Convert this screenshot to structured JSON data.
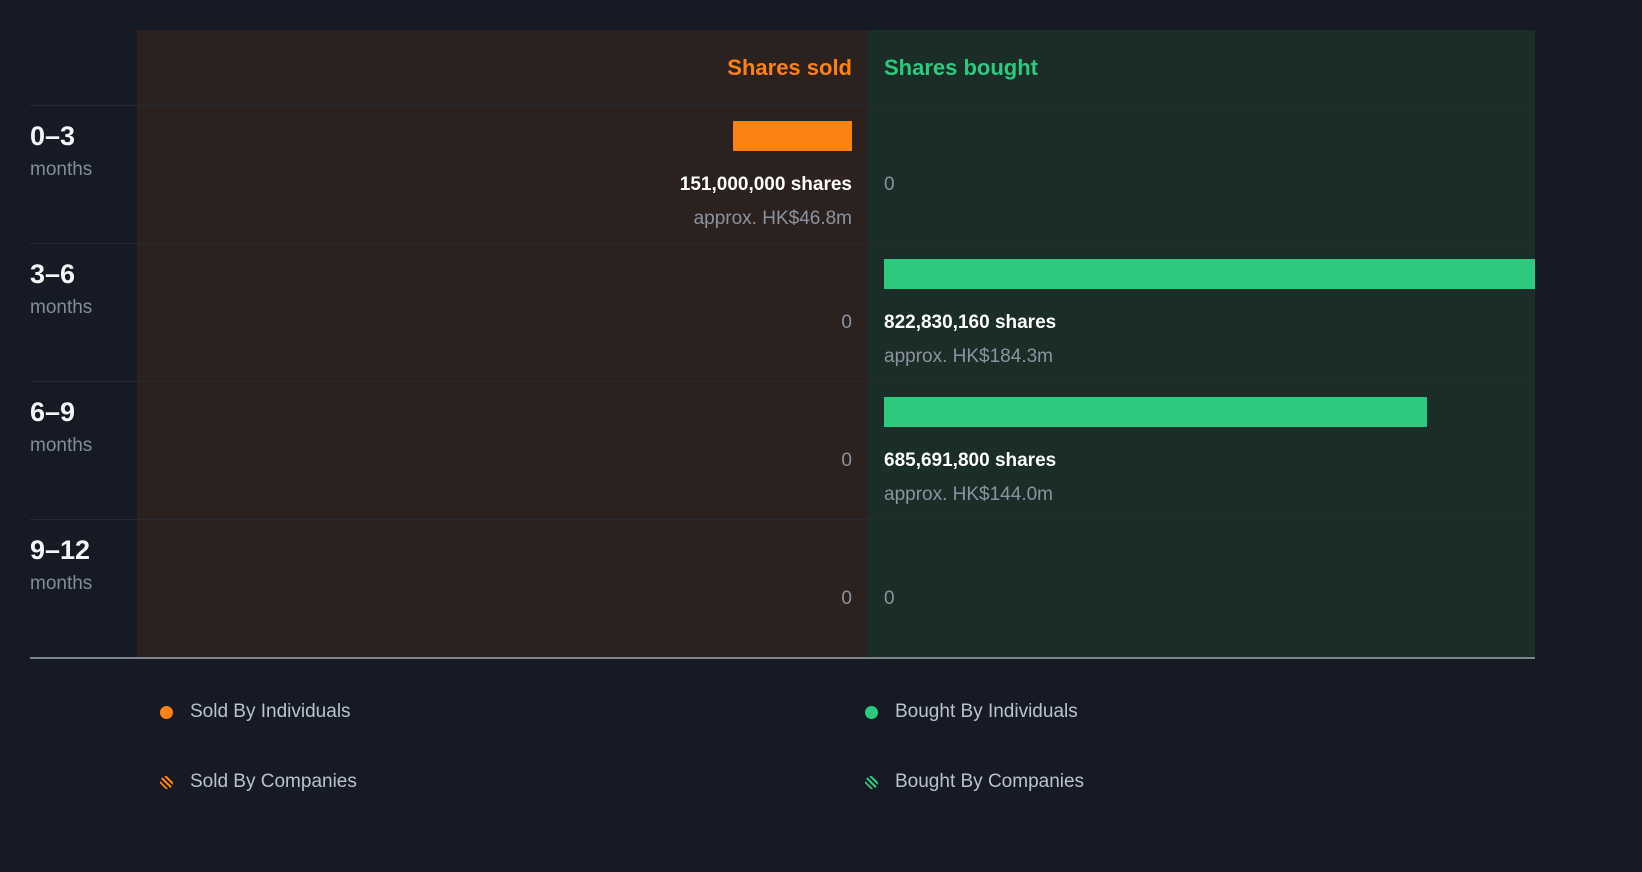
{
  "chart_data": {
    "type": "bar",
    "orientation": "horizontal-diverging",
    "title": "",
    "categories": [
      "0–3 months",
      "3–6 months",
      "6–9 months",
      "9–12 months"
    ],
    "series": [
      {
        "key": "sold",
        "name": "Shares sold",
        "color": "#fc8212",
        "values": [
          151000000,
          0,
          0,
          0
        ]
      },
      {
        "key": "bought",
        "name": "Shares bought",
        "color": "#2dc97e",
        "values": [
          0,
          822830160,
          685691800,
          0
        ]
      }
    ],
    "max_value": 822830160,
    "legend_position": "bottom",
    "grid": false
  },
  "header": {
    "sold_label": "Shares sold",
    "bought_label": "Shares bought"
  },
  "rows": [
    {
      "period": "0–3",
      "unit": "months",
      "sold": {
        "shares": "151,000,000 shares",
        "approx": "approx. HK$46.8m"
      },
      "bought": {
        "zero": "0"
      }
    },
    {
      "period": "3–6",
      "unit": "months",
      "sold": {
        "zero": "0"
      },
      "bought": {
        "shares": "822,830,160 shares",
        "approx": "approx. HK$184.3m"
      }
    },
    {
      "period": "6–9",
      "unit": "months",
      "sold": {
        "zero": "0"
      },
      "bought": {
        "shares": "685,691,800 shares",
        "approx": "approx. HK$144.0m"
      }
    },
    {
      "period": "9–12",
      "unit": "months",
      "sold": {
        "zero": "0"
      },
      "bought": {
        "zero": "0"
      }
    }
  ],
  "legend": {
    "items": [
      {
        "label": "Sold By Individuals",
        "swatch": "solid",
        "color": "#fc8212"
      },
      {
        "label": "Bought By Individuals",
        "swatch": "solid",
        "color": "#2dc97e"
      },
      {
        "label": "Sold By Companies",
        "swatch": "hatched",
        "color": "#fc8212"
      },
      {
        "label": "Bought By Companies",
        "swatch": "hatched",
        "color": "#2dc97e"
      }
    ]
  },
  "colors": {
    "background": "#151a24",
    "sold_panel": "#2b2220",
    "bought_panel": "#1b2d27",
    "sold_accent": "#fc8212",
    "bought_accent": "#2dc97e",
    "muted_text": "#8b93a0"
  }
}
